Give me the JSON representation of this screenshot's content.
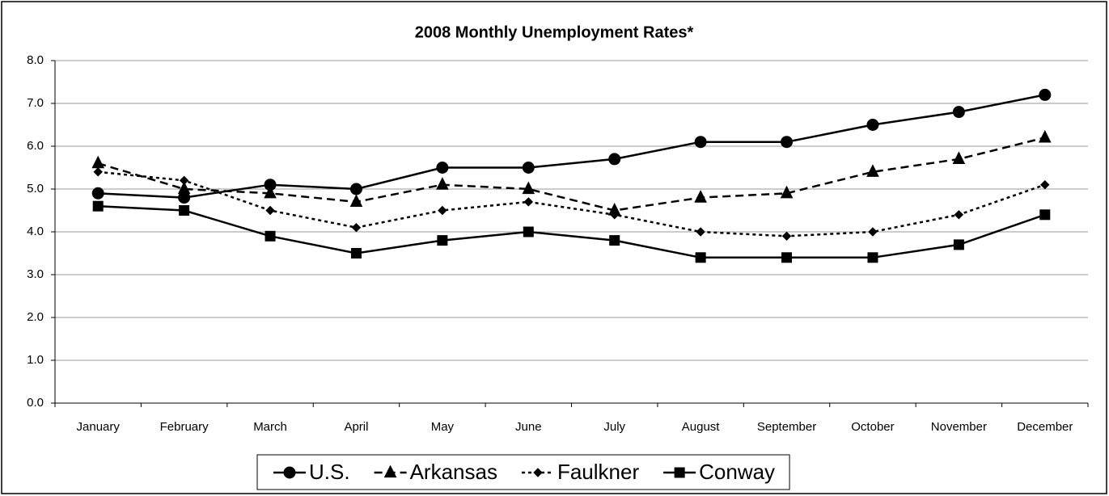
{
  "chart_data": {
    "type": "line",
    "title": "2008 Monthly Unemployment Rates*",
    "categories": [
      "January",
      "February",
      "March",
      "April",
      "May",
      "June",
      "July",
      "August",
      "September",
      "October",
      "November",
      "December"
    ],
    "series": [
      {
        "name": "U.S.",
        "color": "#000000",
        "line_style": "solid",
        "marker": "circle",
        "values": [
          4.9,
          4.8,
          5.1,
          5.0,
          5.5,
          5.5,
          5.7,
          6.1,
          6.1,
          6.5,
          6.8,
          7.2
        ]
      },
      {
        "name": "Arkansas",
        "color": "#000000",
        "line_style": "dashed",
        "marker": "triangle",
        "values": [
          5.6,
          5.0,
          4.9,
          4.7,
          5.1,
          5.0,
          4.5,
          4.8,
          4.9,
          5.4,
          5.7,
          6.2
        ]
      },
      {
        "name": "Faulkner",
        "color": "#000000",
        "line_style": "dotted",
        "marker": "diamond",
        "values": [
          5.4,
          5.2,
          4.5,
          4.1,
          4.5,
          4.7,
          4.4,
          4.0,
          3.9,
          4.0,
          4.4,
          5.1
        ]
      },
      {
        "name": "Conway",
        "color": "#000000",
        "line_style": "solid",
        "marker": "square",
        "values": [
          4.6,
          4.5,
          3.9,
          3.5,
          3.8,
          4.0,
          3.8,
          3.4,
          3.4,
          3.4,
          3.7,
          4.4
        ]
      }
    ],
    "ylim": [
      0,
      8
    ],
    "yticks": [
      {
        "value": 0,
        "label": "0.0"
      },
      {
        "value": 1,
        "label": "1.0"
      },
      {
        "value": 2,
        "label": "2.0"
      },
      {
        "value": 3,
        "label": "3.0"
      },
      {
        "value": 4,
        "label": "4.0"
      },
      {
        "value": 5,
        "label": "5.0"
      },
      {
        "value": 6,
        "label": "6.0"
      },
      {
        "value": 7,
        "label": "7.0"
      },
      {
        "value": 8,
        "label": "8.0"
      }
    ],
    "grid": true,
    "legend": "bottom"
  }
}
